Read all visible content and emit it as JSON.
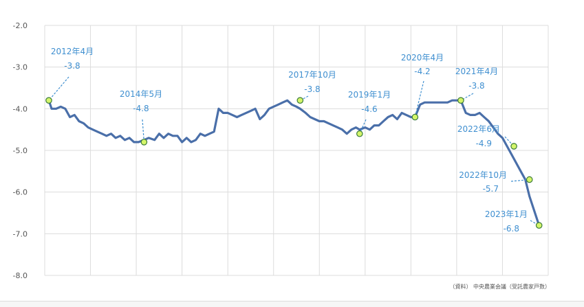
{
  "chart_data": {
    "type": "line",
    "title": "",
    "xlabel": "",
    "ylabel": "",
    "ylim": [
      -8.0,
      -2.0
    ],
    "xlim": [
      2012.2,
      2023.2
    ],
    "y_ticks": [
      "-2.0",
      "-3.0",
      "-4.0",
      "-5.0",
      "-6.0",
      "-7.0",
      "-8.0"
    ],
    "y_tick_values": [
      -2,
      -3,
      -4,
      -5,
      -6,
      -7,
      -8
    ],
    "x_grid": [
      2012.2,
      2013.2,
      2014.2,
      2015.2,
      2016.2,
      2017.2,
      2018.2,
      2019.2,
      2020.2,
      2021.2,
      2022.2,
      2023.2
    ],
    "grid": true,
    "series": [
      {
        "color": "#4a6fa9",
        "x": [
          2012.29,
          2012.35,
          2012.45,
          2012.55,
          2012.65,
          2012.75,
          2012.85,
          2012.95,
          2013.05,
          2013.15,
          2013.25,
          2013.35,
          2013.45,
          2013.55,
          2013.65,
          2013.75,
          2013.85,
          2013.95,
          2014.05,
          2014.15,
          2014.25,
          2014.37,
          2014.47,
          2014.6,
          2014.7,
          2014.8,
          2014.9,
          2015.0,
          2015.1,
          2015.2,
          2015.3,
          2015.4,
          2015.5,
          2015.6,
          2015.7,
          2015.8,
          2015.9,
          2016.0,
          2016.1,
          2016.2,
          2016.3,
          2016.4,
          2016.5,
          2016.6,
          2016.7,
          2016.8,
          2016.9,
          2017.0,
          2017.1,
          2017.2,
          2017.3,
          2017.4,
          2017.5,
          2017.6,
          2017.7,
          2017.78,
          2017.9,
          2018.0,
          2018.1,
          2018.2,
          2018.3,
          2018.4,
          2018.5,
          2018.6,
          2018.7,
          2018.8,
          2018.9,
          2019.0,
          2019.08,
          2019.2,
          2019.3,
          2019.4,
          2019.5,
          2019.6,
          2019.7,
          2019.8,
          2019.9,
          2020.0,
          2020.1,
          2020.2,
          2020.29,
          2020.4,
          2020.5,
          2020.6,
          2020.7,
          2020.8,
          2020.9,
          2021.0,
          2021.1,
          2021.2,
          2021.29,
          2021.4,
          2021.5,
          2021.6,
          2021.7,
          2021.8,
          2021.9,
          2022.0,
          2022.1,
          2022.2,
          2022.3,
          2022.45,
          2022.55,
          2022.7,
          2022.79,
          2023.0
        ],
        "y": [
          -3.8,
          -4.0,
          -4.0,
          -3.95,
          -4.0,
          -4.2,
          -4.15,
          -4.3,
          -4.35,
          -4.45,
          -4.5,
          -4.55,
          -4.6,
          -4.65,
          -4.6,
          -4.7,
          -4.65,
          -4.75,
          -4.7,
          -4.8,
          -4.8,
          -4.75,
          -4.7,
          -4.75,
          -4.6,
          -4.7,
          -4.6,
          -4.65,
          -4.65,
          -4.8,
          -4.7,
          -4.8,
          -4.75,
          -4.6,
          -4.65,
          -4.6,
          -4.55,
          -4.0,
          -4.1,
          -4.1,
          -4.15,
          -4.2,
          -4.15,
          -4.1,
          -4.05,
          -4.0,
          -4.25,
          -4.15,
          -4.0,
          -3.95,
          -3.9,
          -3.85,
          -3.8,
          -3.9,
          -3.95,
          -4.0,
          -4.1,
          -4.2,
          -4.25,
          -4.3,
          -4.3,
          -4.35,
          -4.4,
          -4.45,
          -4.5,
          -4.6,
          -4.5,
          -4.45,
          -4.5,
          -4.45,
          -4.5,
          -4.4,
          -4.4,
          -4.3,
          -4.2,
          -4.15,
          -4.25,
          -4.1,
          -4.15,
          -4.2,
          -4.2,
          -3.9,
          -3.85,
          -3.85,
          -3.85,
          -3.85,
          -3.85,
          -3.85,
          -3.8,
          -3.8,
          -3.8,
          -4.1,
          -4.15,
          -4.15,
          -4.1,
          -4.2,
          -4.3,
          -4.45,
          -4.6,
          -4.7,
          -4.9,
          -5.2,
          -5.4,
          -5.7,
          -6.1,
          -6.8
        ]
      }
    ],
    "annotations": [
      {
        "date": "2012年4月",
        "value": "-3.8",
        "x": 2012.29,
        "y": -3.8
      },
      {
        "date": "2014年5月",
        "value": "-4.8",
        "x": 2014.37,
        "y": -4.8
      },
      {
        "date": "2017年10月",
        "value": "-3.8",
        "x": 2017.78,
        "y": -3.8
      },
      {
        "date": "2019年1月",
        "value": "-4.6",
        "x": 2019.08,
        "y": -4.6
      },
      {
        "date": "2020年4月",
        "value": "-4.2",
        "x": 2020.29,
        "y": -4.2
      },
      {
        "date": "2021年4月",
        "value": "-3.8",
        "x": 2021.29,
        "y": -3.8
      },
      {
        "date": "2022年6月",
        "value": "-4.9",
        "x": 2022.45,
        "y": -4.9
      },
      {
        "date": "2022年10月",
        "value": "-5.7",
        "x": 2022.79,
        "y": -5.7
      },
      {
        "date": "2023年1月",
        "value": "-6.8",
        "x": 2023.0,
        "y": -6.8
      }
    ],
    "source": "（資料） 中央農業会議（受託農家戸数）"
  }
}
